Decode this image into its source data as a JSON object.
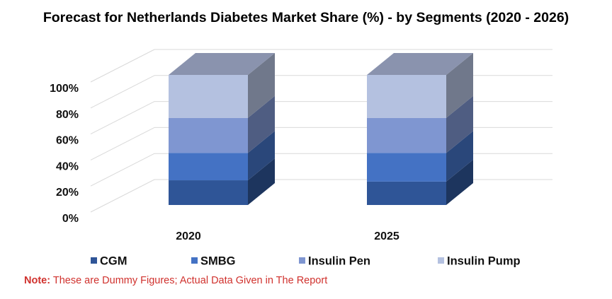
{
  "chart_data": {
    "type": "bar",
    "stacked": true,
    "style": "3d",
    "title": "Forecast for Netherlands Diabetes Market Share (%) - by Segments (2020 - 2026)",
    "categories": [
      "2020",
      "2025"
    ],
    "series": [
      {
        "name": "CGM",
        "values": [
          19,
          18
        ],
        "color": "#2f5597"
      },
      {
        "name": "SMBG",
        "values": [
          21,
          22
        ],
        "color": "#4472c4"
      },
      {
        "name": "Insulin Pen",
        "values": [
          27,
          27
        ],
        "color": "#7f96d1"
      },
      {
        "name": "Insulin Pump",
        "values": [
          33,
          33
        ],
        "color": "#b4c1e0"
      }
    ],
    "ylim": [
      0,
      100
    ],
    "yticks": [
      "0%",
      "20%",
      "40%",
      "60%",
      "80%",
      "100%"
    ],
    "xlabel": "",
    "ylabel": "",
    "legend_position": "bottom",
    "grid": true
  },
  "note": {
    "label": "Note:",
    "text": "These are Dummy Figures; Actual Data Given in The Report"
  }
}
